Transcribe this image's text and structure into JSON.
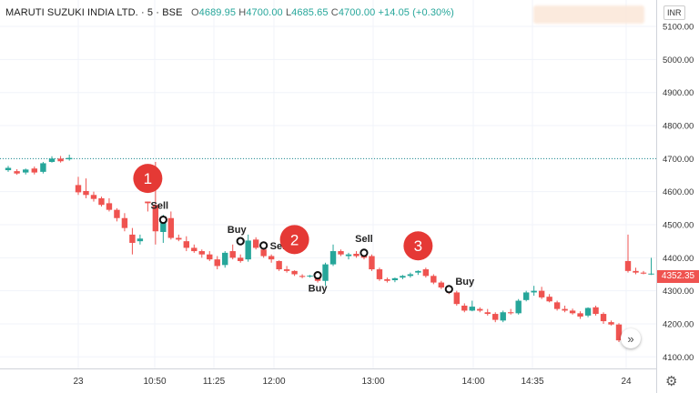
{
  "header": {
    "symbol": "MARUTI SUZUKI INDIA LTD.",
    "sep": "·",
    "interval": "5",
    "exchange": "BSE",
    "open_label": "O",
    "open": "4689.95",
    "high_label": "H",
    "high": "4700.00",
    "low_label": "L",
    "low": "4685.65",
    "close_label": "C",
    "close": "4700.00",
    "change": "+14.05 (+0.30%)"
  },
  "currency": "INR",
  "last_price": "4352.35",
  "colors": {
    "up": "#26a69a",
    "down": "#ef5350",
    "annotation": "#e53935",
    "hline": "#1e8c8c"
  },
  "icons": {
    "settings": "gear-icon",
    "scroll": "double-chevron-right-icon"
  },
  "chart_data": {
    "type": "candlestick",
    "ylim": [
      4065,
      5180
    ],
    "y_ticks": [
      "5100.00",
      "5000.00",
      "4900.00",
      "4800.00",
      "4700.00",
      "4600.00",
      "4500.00",
      "4400.00",
      "4300.00",
      "4200.00",
      "4100.00"
    ],
    "x_ticks": [
      "23",
      "10:50",
      "11:25",
      "12:00",
      "13:00",
      "14:00",
      "14:35",
      "24"
    ],
    "horizontal_line": 4700,
    "candles": [
      [
        4665,
        4678,
        4660,
        4672
      ],
      [
        4662,
        4668,
        4651,
        4655
      ],
      [
        4658,
        4670,
        4652,
        4667
      ],
      [
        4670,
        4676,
        4652,
        4658
      ],
      [
        4660,
        4690,
        4655,
        4686
      ],
      [
        4690,
        4707,
        4688,
        4700
      ],
      [
        4700,
        4708,
        4688,
        4692
      ],
      [
        4698,
        4712,
        4694,
        4702
      ],
      [
        4620,
        4645,
        4590,
        4598
      ],
      [
        4602,
        4640,
        4580,
        4590
      ],
      [
        4590,
        4600,
        4570,
        4578
      ],
      [
        4580,
        4585,
        4555,
        4560
      ],
      [
        4565,
        4580,
        4540,
        4545
      ],
      [
        4545,
        4550,
        4510,
        4520
      ],
      [
        4520,
        4535,
        4480,
        4490
      ],
      [
        4470,
        4490,
        4410,
        4445
      ],
      [
        4450,
        4470,
        4440,
        4458
      ],
      [
        4570,
        4570,
        4540,
        4565
      ],
      [
        4560,
        4690,
        4440,
        4480
      ],
      [
        4478,
        4530,
        4445,
        4523
      ],
      [
        4520,
        4540,
        4455,
        4460
      ],
      [
        4460,
        4470,
        4450,
        4455
      ],
      [
        4450,
        4465,
        4420,
        4430
      ],
      [
        4430,
        4440,
        4415,
        4420
      ],
      [
        4420,
        4425,
        4400,
        4410
      ],
      [
        4410,
        4420,
        4390,
        4395
      ],
      [
        4395,
        4405,
        4365,
        4375
      ],
      [
        4378,
        4420,
        4370,
        4415
      ],
      [
        4420,
        4440,
        4395,
        4400
      ],
      [
        4400,
        4410,
        4385,
        4390
      ],
      [
        4395,
        4470,
        4388,
        4452
      ],
      [
        4455,
        4462,
        4425,
        4430
      ],
      [
        4425,
        4432,
        4400,
        4405
      ],
      [
        4405,
        4410,
        4385,
        4395
      ],
      [
        4390,
        4392,
        4360,
        4365
      ],
      [
        4365,
        4375,
        4355,
        4360
      ],
      [
        4360,
        4362,
        4345,
        4350
      ],
      [
        4345,
        4350,
        4338,
        4342
      ],
      [
        4345,
        4348,
        4340,
        4346
      ],
      [
        4348,
        4355,
        4325,
        4330
      ],
      [
        4330,
        4385,
        4315,
        4380
      ],
      [
        4380,
        4440,
        4375,
        4420
      ],
      [
        4420,
        4425,
        4405,
        4410
      ],
      [
        4405,
        4415,
        4395,
        4410
      ],
      [
        4412,
        4420,
        4400,
        4405
      ],
      [
        4410,
        4415,
        4395,
        4400
      ],
      [
        4405,
        4410,
        4360,
        4365
      ],
      [
        4365,
        4370,
        4330,
        4335
      ],
      [
        4335,
        4340,
        4325,
        4330
      ],
      [
        4332,
        4340,
        4326,
        4338
      ],
      [
        4340,
        4348,
        4335,
        4345
      ],
      [
        4345,
        4355,
        4340,
        4350
      ],
      [
        4355,
        4362,
        4348,
        4360
      ],
      [
        4365,
        4370,
        4340,
        4345
      ],
      [
        4345,
        4350,
        4320,
        4325
      ],
      [
        4325,
        4330,
        4305,
        4310
      ],
      [
        4310,
        4315,
        4290,
        4295
      ],
      [
        4295,
        4300,
        4255,
        4260
      ],
      [
        4255,
        4262,
        4235,
        4240
      ],
      [
        4240,
        4270,
        4238,
        4252
      ],
      [
        4245,
        4250,
        4235,
        4240
      ],
      [
        4235,
        4245,
        4225,
        4230
      ],
      [
        4230,
        4235,
        4205,
        4212
      ],
      [
        4210,
        4240,
        4205,
        4235
      ],
      [
        4235,
        4245,
        4228,
        4232
      ],
      [
        4232,
        4275,
        4228,
        4270
      ],
      [
        4272,
        4300,
        4268,
        4295
      ],
      [
        4295,
        4315,
        4285,
        4300
      ],
      [
        4300,
        4312,
        4275,
        4280
      ],
      [
        4282,
        4290,
        4265,
        4268
      ],
      [
        4265,
        4270,
        4240,
        4245
      ],
      [
        4245,
        4255,
        4235,
        4240
      ],
      [
        4240,
        4246,
        4228,
        4232
      ],
      [
        4232,
        4238,
        4215,
        4222
      ],
      [
        4225,
        4250,
        4220,
        4248
      ],
      [
        4250,
        4255,
        4225,
        4230
      ],
      [
        4230,
        4235,
        4200,
        4208
      ],
      [
        4205,
        4210,
        4195,
        4198
      ],
      [
        4198,
        4202,
        4145,
        4150
      ],
      [
        4390,
        4470,
        4355,
        4360
      ],
      [
        4360,
        4370,
        4350,
        4355
      ],
      [
        4355,
        4360,
        4350,
        4352
      ],
      [
        4352,
        4400,
        4348,
        4352
      ]
    ],
    "markers": [
      {
        "type": "sell",
        "label": "Sell",
        "index": 19,
        "price": 4515
      },
      {
        "type": "buy",
        "label": "Buy",
        "index": 29,
        "price": 4450
      },
      {
        "type": "sell",
        "label": "Sell",
        "index": 32,
        "price": 4437
      },
      {
        "type": "buy",
        "label": "Buy",
        "index": 39,
        "price": 4347
      },
      {
        "type": "sell",
        "label": "Sell",
        "index": 45,
        "price": 4415
      },
      {
        "type": "buy",
        "label": "Buy",
        "index": 56,
        "price": 4305
      }
    ],
    "annotations": [
      {
        "text": "1",
        "index": 17,
        "price": 4640
      },
      {
        "text": "2",
        "index": 36,
        "price": 4455
      },
      {
        "text": "3",
        "index": 52,
        "price": 4436
      }
    ]
  }
}
